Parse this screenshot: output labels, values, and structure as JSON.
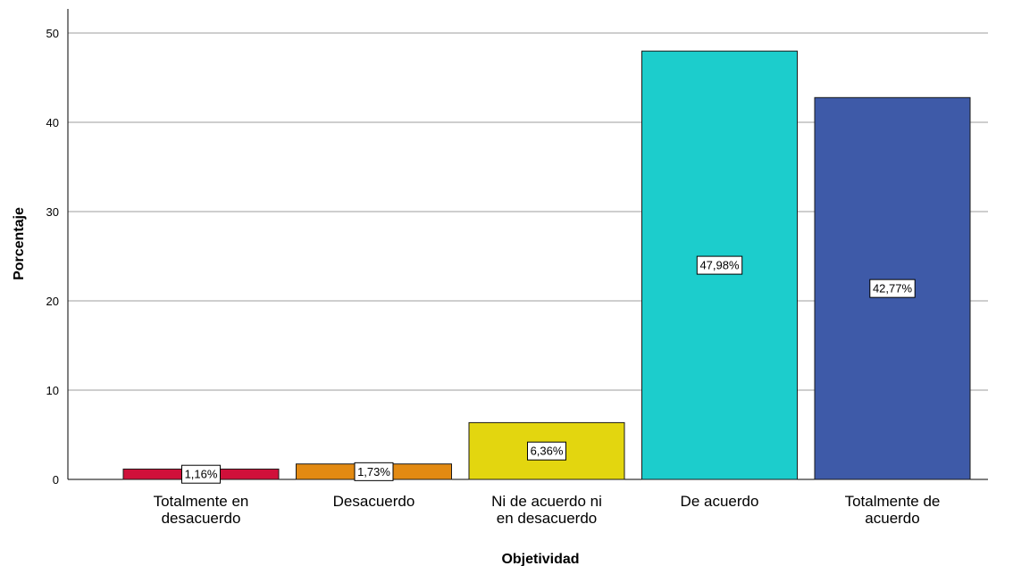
{
  "chart_data": {
    "type": "bar",
    "categories": [
      [
        "Totalmente en",
        "desacuerdo"
      ],
      [
        "Desacuerdo"
      ],
      [
        "Ni de acuerdo ni",
        "en desacuerdo"
      ],
      [
        "De acuerdo"
      ],
      [
        "Totalmente de",
        "acuerdo"
      ]
    ],
    "values": [
      1.16,
      1.73,
      6.36,
      47.98,
      42.77
    ],
    "data_labels": [
      "1,16%",
      "1,73%",
      "6,36%",
      "47,98%",
      "42,77%"
    ],
    "colors": [
      "#d0103a",
      "#e38a12",
      "#e3d60f",
      "#1ccdcc",
      "#3e5aa8"
    ],
    "xlabel": "Objetividad",
    "ylabel": "Porcentaje",
    "ylim": [
      0,
      52
    ],
    "yticks": [
      "0",
      "10",
      "20",
      "30",
      "40",
      "50"
    ],
    "grid": true,
    "legend": false
  }
}
